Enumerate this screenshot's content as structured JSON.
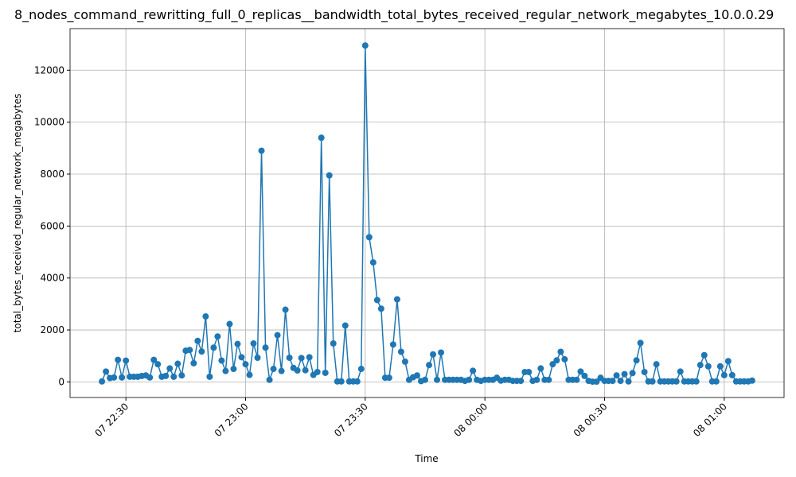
{
  "chart_data": {
    "type": "line",
    "title": "8_nodes_command_rewritting_full_0_replicas__bandwidth_total_bytes_received_regular_network_megabytes_10.0.0.29",
    "x_label": "Time",
    "y_label": "total_bytes_received_regular_network_megabytes",
    "x": [
      "07 22:24",
      "07 22:25",
      "07 22:26",
      "07 22:27",
      "07 22:28",
      "07 22:29",
      "07 22:30",
      "07 22:31",
      "07 22:32",
      "07 22:33",
      "07 22:34",
      "07 22:35",
      "07 22:36",
      "07 22:37",
      "07 22:38",
      "07 22:39",
      "07 22:40",
      "07 22:41",
      "07 22:42",
      "07 22:43",
      "07 22:44",
      "07 22:45",
      "07 22:46",
      "07 22:47",
      "07 22:48",
      "07 22:49",
      "07 22:50",
      "07 22:51",
      "07 22:52",
      "07 22:53",
      "07 22:54",
      "07 22:55",
      "07 22:56",
      "07 22:57",
      "07 22:58",
      "07 22:59",
      "07 23:00",
      "07 23:01",
      "07 23:02",
      "07 23:03",
      "07 23:04",
      "07 23:05",
      "07 23:06",
      "07 23:07",
      "07 23:08",
      "07 23:09",
      "07 23:10",
      "07 23:11",
      "07 23:12",
      "07 23:13",
      "07 23:14",
      "07 23:15",
      "07 23:16",
      "07 23:17",
      "07 23:18",
      "07 23:19",
      "07 23:20",
      "07 23:21",
      "07 23:22",
      "07 23:23",
      "07 23:24",
      "07 23:25",
      "07 23:26",
      "07 23:27",
      "07 23:28",
      "07 23:29",
      "07 23:30",
      "07 23:31",
      "07 23:32",
      "07 23:33",
      "07 23:34",
      "07 23:35",
      "07 23:36",
      "07 23:37",
      "07 23:38",
      "07 23:39",
      "07 23:40",
      "07 23:41",
      "07 23:42",
      "07 23:43",
      "07 23:44",
      "07 23:45",
      "07 23:46",
      "07 23:47",
      "07 23:48",
      "07 23:49",
      "07 23:50",
      "07 23:51",
      "07 23:52",
      "07 23:53",
      "07 23:54",
      "07 23:55",
      "07 23:56",
      "07 23:57",
      "07 23:58",
      "07 23:59",
      "08 00:00",
      "08 00:01",
      "08 00:02",
      "08 00:03",
      "08 00:04",
      "08 00:05",
      "08 00:06",
      "08 00:07",
      "08 00:08",
      "08 00:09",
      "08 00:10",
      "08 00:11",
      "08 00:12",
      "08 00:13",
      "08 00:14",
      "08 00:15",
      "08 00:16",
      "08 00:17",
      "08 00:18",
      "08 00:19",
      "08 00:20",
      "08 00:21",
      "08 00:22",
      "08 00:23",
      "08 00:24",
      "08 00:25",
      "08 00:26",
      "08 00:27",
      "08 00:28",
      "08 00:29",
      "08 00:30",
      "08 00:31",
      "08 00:32",
      "08 00:33",
      "08 00:34",
      "08 00:35",
      "08 00:36",
      "08 00:37",
      "08 00:38",
      "08 00:39",
      "08 00:40",
      "08 00:41",
      "08 00:42",
      "08 00:43",
      "08 00:44",
      "08 00:45",
      "08 00:46",
      "08 00:47",
      "08 00:48",
      "08 00:49",
      "08 00:50",
      "08 00:51",
      "08 00:52",
      "08 00:53",
      "08 00:54",
      "08 00:55",
      "08 00:56",
      "08 00:57",
      "08 00:58",
      "08 00:59",
      "08 01:00",
      "08 01:01",
      "08 01:02",
      "08 01:03",
      "08 01:04",
      "08 01:05",
      "08 01:06",
      "08 01:07"
    ],
    "series": [
      {
        "color": "#1f77b4",
        "values": [
          20,
          400,
          150,
          170,
          850,
          170,
          820,
          200,
          200,
          200,
          230,
          250,
          170,
          850,
          680,
          200,
          230,
          520,
          200,
          700,
          250,
          1200,
          1230,
          720,
          1580,
          1170,
          2520,
          200,
          1320,
          1750,
          820,
          420,
          2230,
          500,
          1460,
          950,
          680,
          270,
          1480,
          930,
          8900,
          1320,
          80,
          500,
          1800,
          420,
          2780,
          930,
          540,
          440,
          920,
          450,
          950,
          270,
          380,
          9400,
          350,
          7950,
          1480,
          20,
          20,
          2170,
          20,
          20,
          20,
          500,
          12950,
          5570,
          4600,
          3150,
          2820,
          160,
          160,
          1440,
          3180,
          1160,
          780,
          80,
          180,
          250,
          30,
          80,
          650,
          1060,
          80,
          1130,
          80,
          80,
          80,
          80,
          80,
          40,
          80,
          430,
          80,
          40,
          80,
          80,
          80,
          160,
          50,
          80,
          80,
          40,
          40,
          40,
          380,
          380,
          40,
          80,
          520,
          80,
          80,
          680,
          830,
          1160,
          870,
          80,
          80,
          80,
          400,
          230,
          40,
          10,
          10,
          160,
          40,
          40,
          40,
          250,
          40,
          300,
          20,
          340,
          830,
          1500,
          380,
          20,
          20,
          680,
          20,
          20,
          20,
          20,
          20,
          400,
          20,
          20,
          20,
          20,
          650,
          1030,
          600,
          20,
          20,
          600,
          260,
          800,
          260,
          20,
          20,
          20,
          20,
          50
        ]
      }
    ],
    "xlim": [
      "07 22:16",
      "08 01:15"
    ],
    "xticks": [
      "07 22:30",
      "07 23:00",
      "07 23:30",
      "08 00:00",
      "08 00:30",
      "08 01:00"
    ],
    "ylim": [
      -600,
      13600
    ],
    "yticks": [
      0,
      2000,
      4000,
      6000,
      8000,
      10000,
      12000
    ],
    "grid": true
  }
}
